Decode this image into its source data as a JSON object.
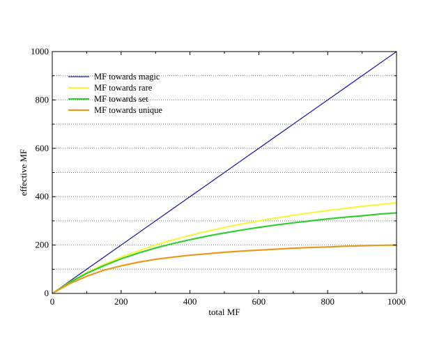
{
  "chart_data": {
    "type": "line",
    "title": "",
    "xlabel": "total MF",
    "ylabel": "effective MF",
    "xlim": [
      0,
      1000
    ],
    "ylim": [
      0,
      1000
    ],
    "x_ticks": [
      "0",
      "200",
      "400",
      "600",
      "800",
      "1000"
    ],
    "y_ticks": [
      "0",
      "200",
      "400",
      "600",
      "800",
      "1000"
    ],
    "grid": "horizontal dotted",
    "legend_placement": "top-left",
    "x": [
      0,
      50,
      100,
      150,
      200,
      250,
      300,
      350,
      400,
      450,
      500,
      550,
      600,
      650,
      700,
      750,
      800,
      850,
      900,
      950,
      1000
    ],
    "series": [
      {
        "name": "MF towards magic",
        "color": "#1f1f9f",
        "values": [
          0,
          50,
          100,
          150,
          200,
          250,
          300,
          350,
          400,
          450,
          500,
          550,
          600,
          650,
          700,
          750,
          800,
          850,
          900,
          950,
          1000
        ]
      },
      {
        "name": "MF towards rare",
        "color": "#f5f542",
        "values": [
          0,
          46,
          86,
          120,
          150,
          176,
          200,
          221,
          240,
          257,
          273,
          287,
          300,
          312,
          323,
          333,
          343,
          351,
          360,
          367,
          375
        ]
      },
      {
        "name": "MF towards set",
        "color": "#33cc33",
        "values": [
          0,
          45,
          83,
          115,
          143,
          167,
          188,
          206,
          222,
          237,
          250,
          262,
          273,
          283,
          292,
          300,
          308,
          315,
          321,
          328,
          333
        ]
      },
      {
        "name": "MF towards unique",
        "color": "#e69a1e",
        "values": [
          0,
          40,
          71,
          96,
          114,
          129,
          141,
          150,
          158,
          164,
          170,
          175,
          179,
          183,
          187,
          190,
          192,
          195,
          197,
          199,
          200
        ]
      }
    ]
  }
}
